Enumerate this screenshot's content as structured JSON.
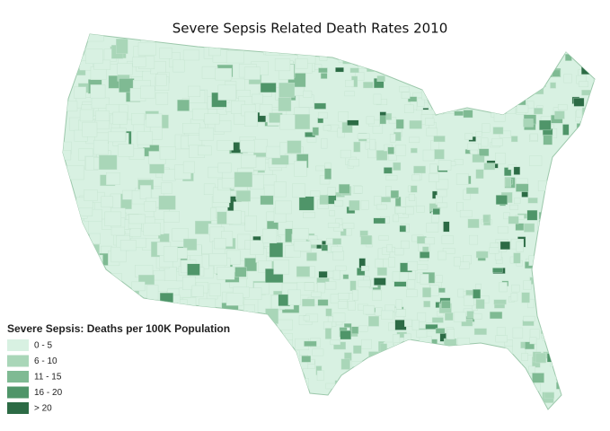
{
  "title": "Severe Sepsis Related Death Rates 2010",
  "legend": {
    "title": "Severe Sepsis: Deaths per 100K Population",
    "items": [
      {
        "label": "0 - 5",
        "color": "#d8f1e2"
      },
      {
        "label": "6 - 10",
        "color": "#a9d6b8"
      },
      {
        "label": "11 - 15",
        "color": "#7fba93"
      },
      {
        "label": "16 - 20",
        "color": "#4f9569"
      },
      {
        "label": "> 20",
        "color": "#2c6b45"
      }
    ]
  }
}
